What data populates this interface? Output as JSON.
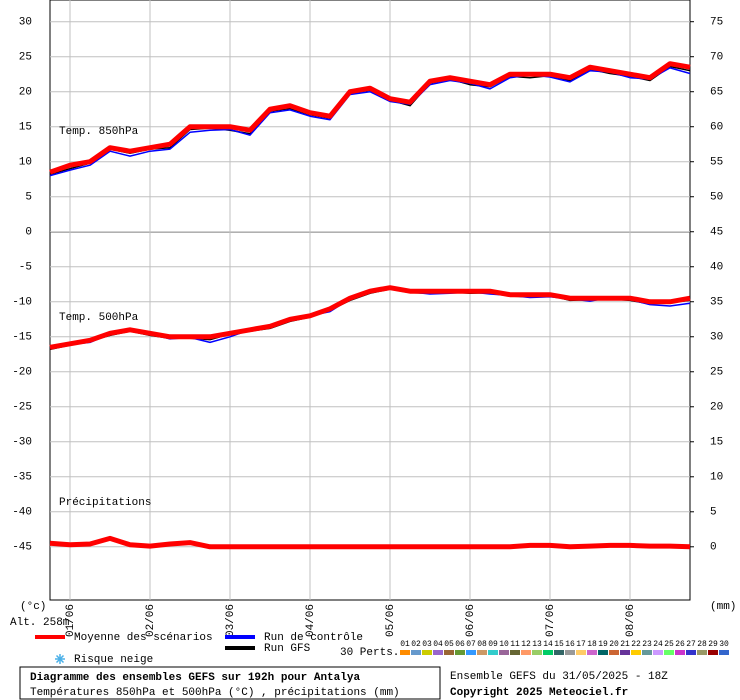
{
  "chart_data": {
    "type": "line",
    "categories": [
      null,
      "01/06",
      null,
      null,
      null,
      "02/06",
      null,
      null,
      null,
      "03/06",
      null,
      null,
      null,
      "04/06",
      null,
      null,
      null,
      "05/06",
      null,
      null,
      null,
      "06/06",
      null,
      null,
      null,
      "07/06",
      null,
      null,
      null,
      "08/06",
      null,
      null,
      null
    ],
    "ylim": [
      -52.6,
      33.1
    ],
    "yticks": [
      30,
      25,
      20,
      15,
      10,
      5,
      0,
      -5,
      -10,
      -15,
      -20,
      -25,
      -30,
      -35,
      -40,
      -45
    ],
    "y2lim": [
      -7.6,
      78.1
    ],
    "y2ticks": [
      75,
      70,
      65,
      60,
      55,
      50,
      45,
      40,
      35,
      30,
      25,
      20,
      15,
      10,
      5,
      0
    ],
    "y_unit": "(°c)",
    "y2_unit": "(mm)",
    "altitude": "Alt. 258m",
    "grid": true,
    "panels": [
      {
        "label": "Temp. 850hPa",
        "series": [
          {
            "color": "#000000",
            "values": [
              8.2,
              9.0,
              9.8,
              11.8,
              11.2,
              11.8,
              12.0,
              14.6,
              14.8,
              14.5,
              14.0,
              17.2,
              17.6,
              16.7,
              16.2,
              19.8,
              20.2,
              18.8,
              18.0,
              21.2,
              21.8,
              21.0,
              20.7,
              22.2,
              22.0,
              22.3,
              21.6,
              23.2,
              22.6,
              22.2,
              21.6,
              23.6,
              23.0
            ]
          },
          {
            "color": "#0000ff",
            "values": [
              8.0,
              8.8,
              9.5,
              11.5,
              10.8,
              11.5,
              11.8,
              14.2,
              14.5,
              14.6,
              13.8,
              17.0,
              17.4,
              16.5,
              16.0,
              19.6,
              20.0,
              18.6,
              18.2,
              21.0,
              21.6,
              21.2,
              20.4,
              22.0,
              22.4,
              22.1,
              21.4,
              23.0,
              22.8,
              22.0,
              21.8,
              23.4,
              22.6
            ]
          },
          {
            "color": "#ff0000",
            "values": [
              8.5,
              9.5,
              10.0,
              12.0,
              11.5,
              12.0,
              12.5,
              15.0,
              15.0,
              15.0,
              14.5,
              17.5,
              18.0,
              17.0,
              16.5,
              20.0,
              20.5,
              19.0,
              18.5,
              21.5,
              22.0,
              21.5,
              21.0,
              22.5,
              22.5,
              22.5,
              22.0,
              23.5,
              23.0,
              22.5,
              22.0,
              24.0,
              23.5
            ]
          }
        ]
      },
      {
        "label": "Temp. 500hPa",
        "series": [
          {
            "color": "#000000",
            "values": [
              -16.8,
              -16.2,
              -15.6,
              -14.8,
              -14.2,
              -14.8,
              -15.2,
              -15.2,
              -15.4,
              -14.6,
              -14.2,
              -13.8,
              -12.8,
              -12.2,
              -11.2,
              -9.8,
              -8.8,
              -8.2,
              -8.7,
              -8.8,
              -8.6,
              -8.8,
              -8.7,
              -9.2,
              -9.3,
              -9.1,
              -9.8,
              -9.7,
              -9.6,
              -9.8,
              -10.3,
              -10.1,
              -9.8
            ]
          },
          {
            "color": "#0000ff",
            "values": [
              -16.6,
              -16.1,
              -15.8,
              -14.6,
              -14.1,
              -14.6,
              -15.3,
              -15.1,
              -15.8,
              -15.0,
              -14.0,
              -13.6,
              -12.6,
              -12.0,
              -11.4,
              -9.6,
              -8.6,
              -8.1,
              -8.6,
              -8.9,
              -8.8,
              -8.6,
              -8.9,
              -9.1,
              -9.4,
              -9.3,
              -9.6,
              -9.9,
              -9.4,
              -9.7,
              -10.4,
              -10.6,
              -10.2
            ]
          },
          {
            "color": "#ff0000",
            "values": [
              -16.5,
              -16.0,
              -15.5,
              -14.5,
              -14.0,
              -14.5,
              -15.0,
              -15.0,
              -15.0,
              -14.5,
              -14.0,
              -13.5,
              -12.5,
              -12.0,
              -11.0,
              -9.5,
              -8.5,
              -8.0,
              -8.5,
              -8.5,
              -8.5,
              -8.5,
              -8.5,
              -9.0,
              -9.0,
              -9.0,
              -9.5,
              -9.5,
              -9.5,
              -9.5,
              -10.0,
              -10.0,
              -9.5
            ]
          }
        ]
      },
      {
        "label": "Précipitations",
        "axis": "y2",
        "series": [
          {
            "color": "#000000",
            "values": [
              0.4,
              0.2,
              0.3,
              1.0,
              0.2,
              0.1,
              0.3,
              0.5,
              0.1,
              0,
              0,
              0,
              0,
              0,
              0,
              0,
              0,
              0,
              0,
              0,
              0,
              0,
              0,
              0,
              0.1,
              0.1,
              0,
              0.1,
              0.3,
              0.4,
              0.1,
              0,
              0
            ]
          },
          {
            "color": "#0000ff",
            "values": [
              0.5,
              0.3,
              0.4,
              1.4,
              0.3,
              0.1,
              0.4,
              0.7,
              0.1,
              0,
              0,
              0,
              0,
              0,
              0,
              0,
              0,
              0,
              0,
              0,
              0,
              0,
              0,
              0,
              0.1,
              0.1,
              0,
              0.1,
              0.2,
              0.2,
              0.1,
              0,
              0
            ]
          },
          {
            "color": "#ff0000",
            "values": [
              0.5,
              0.3,
              0.4,
              1.2,
              0.3,
              0.1,
              0.4,
              0.6,
              0,
              0,
              0,
              0,
              0,
              0,
              0,
              0,
              0,
              0,
              0,
              0,
              0,
              0,
              0,
              0,
              0.2,
              0.2,
              0,
              0.1,
              0.2,
              0.2,
              0.1,
              0.1,
              0
            ]
          }
        ]
      }
    ],
    "legend": [
      {
        "name": "Moyenne des scénarios",
        "color": "#ff0000"
      },
      {
        "name": "Run de contrôle",
        "color": "#0000ff"
      },
      {
        "name": "Run GFS",
        "color": "#000000"
      }
    ],
    "snow_label": "Risque neige",
    "perts_label": "30 Perts.",
    "perturbations": [
      {
        "name": "01",
        "color": "#ff8c00"
      },
      {
        "name": "02",
        "color": "#6699cc"
      },
      {
        "name": "03",
        "color": "#cccc00"
      },
      {
        "name": "04",
        "color": "#9966cc"
      },
      {
        "name": "05",
        "color": "#996633"
      },
      {
        "name": "06",
        "color": "#669933"
      },
      {
        "name": "07",
        "color": "#3399ff"
      },
      {
        "name": "08",
        "color": "#cc9966"
      },
      {
        "name": "09",
        "color": "#33cccc"
      },
      {
        "name": "10",
        "color": "#996699"
      },
      {
        "name": "11",
        "color": "#666633"
      },
      {
        "name": "12",
        "color": "#ff9966"
      },
      {
        "name": "13",
        "color": "#99cc66"
      },
      {
        "name": "14",
        "color": "#00cc66"
      },
      {
        "name": "15",
        "color": "#336666"
      },
      {
        "name": "16",
        "color": "#999999"
      },
      {
        "name": "17",
        "color": "#ffcc66"
      },
      {
        "name": "18",
        "color": "#cc66cc"
      },
      {
        "name": "19",
        "color": "#006666"
      },
      {
        "name": "20",
        "color": "#cc6633"
      },
      {
        "name": "21",
        "color": "#663399"
      },
      {
        "name": "22",
        "color": "#ffcc00"
      },
      {
        "name": "23",
        "color": "#669999"
      },
      {
        "name": "24",
        "color": "#cc99ff"
      },
      {
        "name": "25",
        "color": "#66ff66"
      },
      {
        "name": "26",
        "color": "#cc33cc"
      },
      {
        "name": "27",
        "color": "#3333cc"
      },
      {
        "name": "28",
        "color": "#999966"
      },
      {
        "name": "29",
        "color": "#990000"
      },
      {
        "name": "30",
        "color": "#3366cc"
      }
    ],
    "title": "Diagramme des ensembles GEFS sur 192h pour Antalya",
    "subtitle": "Températures 850hPa et 500hPa (°C) , précipitations (mm)",
    "run_info": "Ensemble GEFS du 31/05/2025 - 18Z",
    "copyright": "Copyright 2025 Meteociel.fr"
  }
}
